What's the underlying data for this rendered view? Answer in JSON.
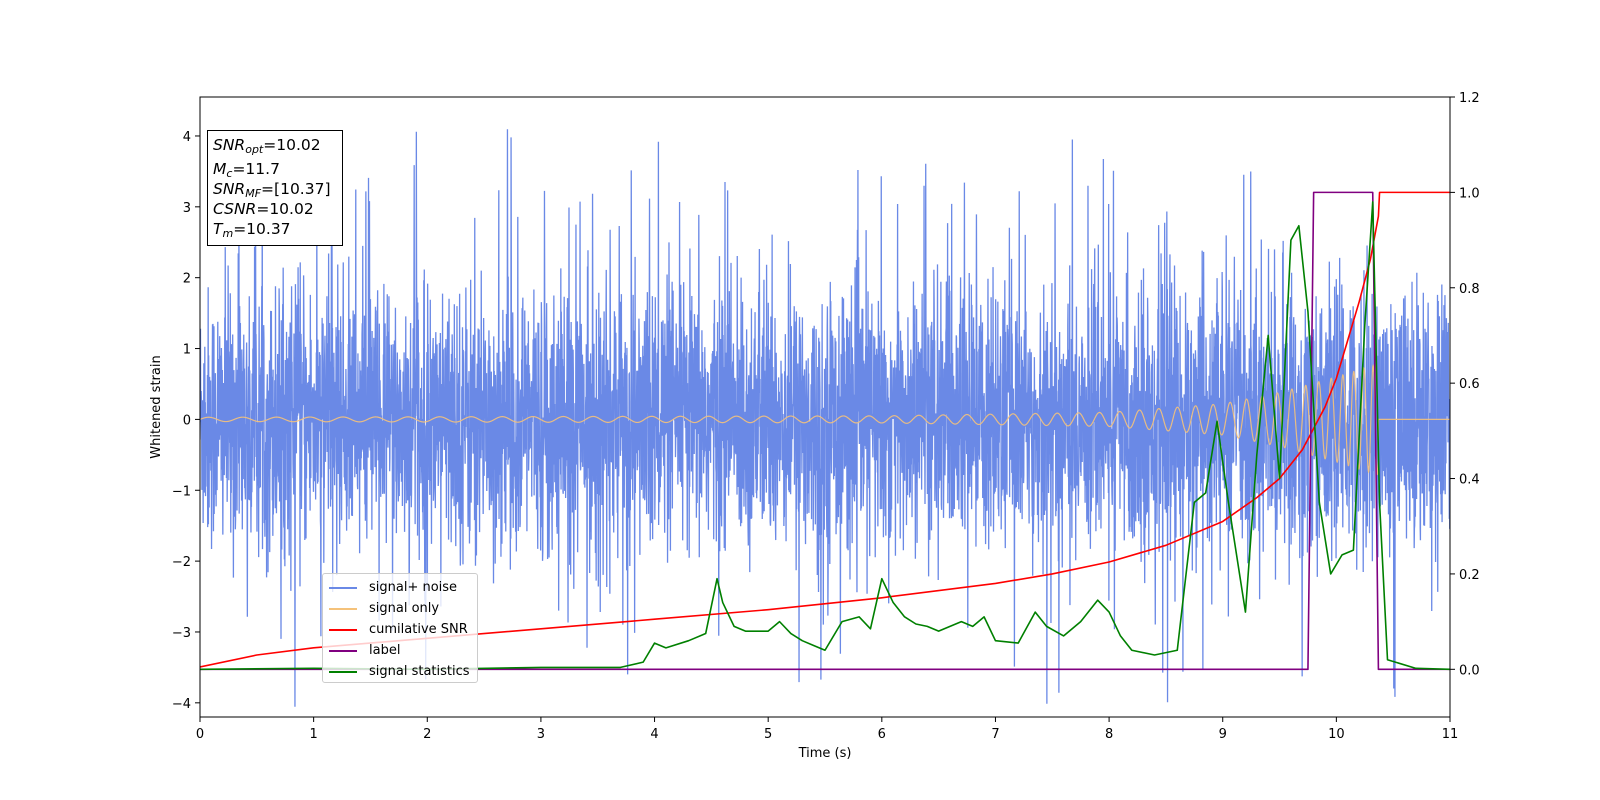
{
  "chart_data": {
    "type": "line",
    "xlabel": "Time (s)",
    "ylabel": "Whitened strain",
    "xlim": [
      0,
      11
    ],
    "ylim_left": [
      -4.2,
      4.55
    ],
    "ylim_right": [
      -0.1,
      1.2
    ],
    "x_ticks": [
      "0",
      "1",
      "2",
      "3",
      "4",
      "5",
      "6",
      "7",
      "8",
      "9",
      "10",
      "11"
    ],
    "y_left_ticks": [
      "−4",
      "−3",
      "−2",
      "−1",
      "0",
      "1",
      "2",
      "3",
      "4"
    ],
    "y_right_ticks": [
      "0.0",
      "0.2",
      "0.4",
      "0.6",
      "0.8",
      "1.0",
      "1.2"
    ],
    "legend_position": "lower-left",
    "annotation": {
      "snr_opt": "=10.02",
      "mc": "=11.7",
      "snr_mf": "=[10.37]",
      "csnr": "=10.02",
      "tm": "=10.37"
    },
    "series": [
      {
        "name": "signal+ noise",
        "axis": "left",
        "color": "#6a89e6",
        "note": "gaussian noise, approx std 0.9, spikes up to 4.2"
      },
      {
        "name": "signal only",
        "axis": "left",
        "color": "#f5c27a",
        "chirp_envelope": [
          [
            0,
            0.03
          ],
          [
            6,
            0.05
          ],
          [
            8,
            0.1
          ],
          [
            9,
            0.22
          ],
          [
            9.5,
            0.38
          ],
          [
            10,
            0.6
          ],
          [
            10.3,
            0.75
          ],
          [
            10.37,
            0.78
          ]
        ],
        "ends_at": 10.37
      },
      {
        "name": "cumilative SNR",
        "axis": "right",
        "color": "#ff0000",
        "points": [
          [
            0,
            0.005
          ],
          [
            0.5,
            0.03
          ],
          [
            1,
            0.045
          ],
          [
            2,
            0.065
          ],
          [
            3,
            0.085
          ],
          [
            4,
            0.105
          ],
          [
            5,
            0.125
          ],
          [
            6,
            0.15
          ],
          [
            7,
            0.18
          ],
          [
            7.5,
            0.2
          ],
          [
            8,
            0.225
          ],
          [
            8.5,
            0.26
          ],
          [
            9,
            0.31
          ],
          [
            9.3,
            0.36
          ],
          [
            9.5,
            0.4
          ],
          [
            9.7,
            0.46
          ],
          [
            9.9,
            0.55
          ],
          [
            10,
            0.61
          ],
          [
            10.1,
            0.69
          ],
          [
            10.2,
            0.77
          ],
          [
            10.3,
            0.86
          ],
          [
            10.37,
            0.95
          ],
          [
            10.38,
            1.0
          ],
          [
            11,
            1.0
          ]
        ]
      },
      {
        "name": "label",
        "axis": "right",
        "color": "#800080",
        "points": [
          [
            0,
            0
          ],
          [
            9.75,
            0
          ],
          [
            9.8,
            1
          ],
          [
            10.32,
            1
          ],
          [
            10.37,
            0
          ],
          [
            11,
            0
          ]
        ]
      },
      {
        "name": "signal statistics",
        "axis": "right",
        "color": "#008000",
        "points": [
          [
            0,
            0
          ],
          [
            1,
            0.002
          ],
          [
            2,
            0.0
          ],
          [
            3,
            0.004
          ],
          [
            3.7,
            0.004
          ],
          [
            3.9,
            0.015
          ],
          [
            4.0,
            0.055
          ],
          [
            4.1,
            0.045
          ],
          [
            4.3,
            0.06
          ],
          [
            4.45,
            0.075
          ],
          [
            4.55,
            0.19
          ],
          [
            4.6,
            0.14
          ],
          [
            4.7,
            0.09
          ],
          [
            4.8,
            0.08
          ],
          [
            5.0,
            0.08
          ],
          [
            5.1,
            0.1
          ],
          [
            5.2,
            0.075
          ],
          [
            5.3,
            0.06
          ],
          [
            5.4,
            0.05
          ],
          [
            5.5,
            0.04
          ],
          [
            5.65,
            0.1
          ],
          [
            5.8,
            0.11
          ],
          [
            5.9,
            0.085
          ],
          [
            6.0,
            0.19
          ],
          [
            6.1,
            0.14
          ],
          [
            6.2,
            0.11
          ],
          [
            6.3,
            0.095
          ],
          [
            6.4,
            0.09
          ],
          [
            6.5,
            0.08
          ],
          [
            6.7,
            0.1
          ],
          [
            6.8,
            0.09
          ],
          [
            6.9,
            0.11
          ],
          [
            7.0,
            0.06
          ],
          [
            7.2,
            0.055
          ],
          [
            7.35,
            0.12
          ],
          [
            7.45,
            0.09
          ],
          [
            7.6,
            0.07
          ],
          [
            7.75,
            0.1
          ],
          [
            7.9,
            0.145
          ],
          [
            8.0,
            0.12
          ],
          [
            8.1,
            0.07
          ],
          [
            8.2,
            0.04
          ],
          [
            8.4,
            0.03
          ],
          [
            8.6,
            0.04
          ],
          [
            8.75,
            0.35
          ],
          [
            8.85,
            0.37
          ],
          [
            8.95,
            0.52
          ],
          [
            9.05,
            0.35
          ],
          [
            9.2,
            0.12
          ],
          [
            9.3,
            0.45
          ],
          [
            9.4,
            0.7
          ],
          [
            9.5,
            0.4
          ],
          [
            9.6,
            0.9
          ],
          [
            9.67,
            0.93
          ],
          [
            9.75,
            0.75
          ],
          [
            9.85,
            0.35
          ],
          [
            9.95,
            0.2
          ],
          [
            10.05,
            0.24
          ],
          [
            10.15,
            0.25
          ],
          [
            10.25,
            0.72
          ],
          [
            10.32,
            0.98
          ],
          [
            10.38,
            0.35
          ],
          [
            10.45,
            0.02
          ],
          [
            10.7,
            0.002
          ],
          [
            11,
            0.0
          ]
        ]
      }
    ]
  }
}
